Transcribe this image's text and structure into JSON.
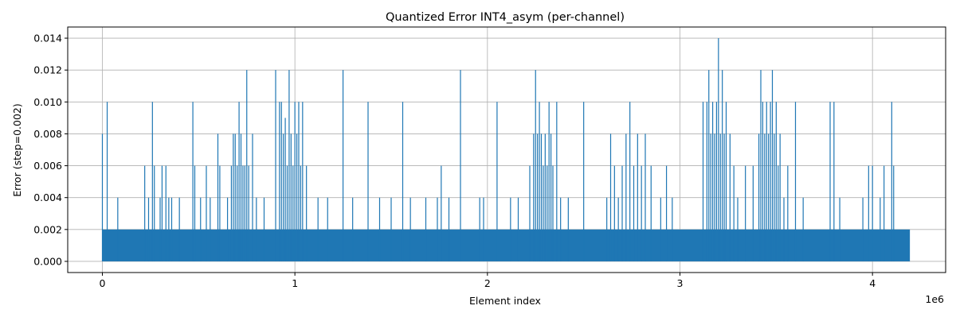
{
  "chart_data": {
    "type": "line",
    "title": "Quantized Error INT4_asym (per-channel)",
    "xlabel": "Element index",
    "ylabel": "Error (step=0.002)",
    "x_offset_text": "1e6",
    "xlim": [
      -180000,
      4380000
    ],
    "ylim": [
      -0.0007,
      0.0147
    ],
    "grid": true,
    "series_color": "#1f77b4",
    "x_ticks": [
      {
        "value": 0,
        "label": "0"
      },
      {
        "value": 1000000,
        "label": "1"
      },
      {
        "value": 2000000,
        "label": "2"
      },
      {
        "value": 3000000,
        "label": "3"
      },
      {
        "value": 4000000,
        "label": "4"
      }
    ],
    "y_ticks": [
      {
        "value": 0.0,
        "label": "0.000"
      },
      {
        "value": 0.002,
        "label": "0.002"
      },
      {
        "value": 0.004,
        "label": "0.004"
      },
      {
        "value": 0.006,
        "label": "0.006"
      },
      {
        "value": 0.008,
        "label": "0.008"
      },
      {
        "value": 0.01,
        "label": "0.010"
      },
      {
        "value": 0.012,
        "label": "0.012"
      },
      {
        "value": 0.014,
        "label": "0.014"
      }
    ],
    "series": [
      {
        "x_range": [
          0,
          4194304
        ],
        "baseline_band": [
          0.0,
          0.002
        ],
        "spikes": [
          [
            0,
            0.008
          ],
          [
            25000,
            0.01
          ],
          [
            80000,
            0.004
          ],
          [
            220000,
            0.006
          ],
          [
            240000,
            0.004
          ],
          [
            260000,
            0.01
          ],
          [
            270000,
            0.006
          ],
          [
            300000,
            0.004
          ],
          [
            310000,
            0.006
          ],
          [
            330000,
            0.006
          ],
          [
            345000,
            0.004
          ],
          [
            360000,
            0.004
          ],
          [
            400000,
            0.004
          ],
          [
            470000,
            0.01
          ],
          [
            480000,
            0.006
          ],
          [
            510000,
            0.004
          ],
          [
            540000,
            0.006
          ],
          [
            560000,
            0.004
          ],
          [
            600000,
            0.008
          ],
          [
            610000,
            0.006
          ],
          [
            650000,
            0.004
          ],
          [
            670000,
            0.006
          ],
          [
            680000,
            0.008
          ],
          [
            690000,
            0.008
          ],
          [
            700000,
            0.006
          ],
          [
            710000,
            0.01
          ],
          [
            720000,
            0.008
          ],
          [
            730000,
            0.006
          ],
          [
            740000,
            0.006
          ],
          [
            750000,
            0.012
          ],
          [
            760000,
            0.006
          ],
          [
            780000,
            0.008
          ],
          [
            800000,
            0.004
          ],
          [
            840000,
            0.004
          ],
          [
            900000,
            0.012
          ],
          [
            920000,
            0.01
          ],
          [
            930000,
            0.01
          ],
          [
            940000,
            0.008
          ],
          [
            950000,
            0.009
          ],
          [
            960000,
            0.006
          ],
          [
            970000,
            0.012
          ],
          [
            980000,
            0.008
          ],
          [
            990000,
            0.006
          ],
          [
            1000000,
            0.01
          ],
          [
            1010000,
            0.008
          ],
          [
            1020000,
            0.01
          ],
          [
            1030000,
            0.006
          ],
          [
            1040000,
            0.01
          ],
          [
            1060000,
            0.006
          ],
          [
            1120000,
            0.004
          ],
          [
            1170000,
            0.004
          ],
          [
            1250000,
            0.012
          ],
          [
            1300000,
            0.004
          ],
          [
            1380000,
            0.01
          ],
          [
            1440000,
            0.004
          ],
          [
            1500000,
            0.004
          ],
          [
            1560000,
            0.01
          ],
          [
            1600000,
            0.004
          ],
          [
            1680000,
            0.004
          ],
          [
            1740000,
            0.004
          ],
          [
            1760000,
            0.006
          ],
          [
            1800000,
            0.004
          ],
          [
            1860000,
            0.012
          ],
          [
            1960000,
            0.004
          ],
          [
            1980000,
            0.004
          ],
          [
            2050000,
            0.01
          ],
          [
            2120000,
            0.004
          ],
          [
            2160000,
            0.004
          ],
          [
            2220000,
            0.006
          ],
          [
            2240000,
            0.008
          ],
          [
            2250000,
            0.012
          ],
          [
            2260000,
            0.008
          ],
          [
            2270000,
            0.01
          ],
          [
            2280000,
            0.008
          ],
          [
            2290000,
            0.006
          ],
          [
            2300000,
            0.008
          ],
          [
            2310000,
            0.006
          ],
          [
            2320000,
            0.01
          ],
          [
            2330000,
            0.008
          ],
          [
            2340000,
            0.006
          ],
          [
            2360000,
            0.01
          ],
          [
            2380000,
            0.004
          ],
          [
            2420000,
            0.004
          ],
          [
            2500000,
            0.01
          ],
          [
            2620000,
            0.004
          ],
          [
            2640000,
            0.008
          ],
          [
            2660000,
            0.006
          ],
          [
            2680000,
            0.004
          ],
          [
            2700000,
            0.006
          ],
          [
            2720000,
            0.008
          ],
          [
            2740000,
            0.01
          ],
          [
            2760000,
            0.006
          ],
          [
            2780000,
            0.008
          ],
          [
            2800000,
            0.006
          ],
          [
            2820000,
            0.008
          ],
          [
            2850000,
            0.006
          ],
          [
            2900000,
            0.004
          ],
          [
            2930000,
            0.006
          ],
          [
            2960000,
            0.004
          ],
          [
            3120000,
            0.01
          ],
          [
            3140000,
            0.01
          ],
          [
            3150000,
            0.012
          ],
          [
            3160000,
            0.008
          ],
          [
            3170000,
            0.01
          ],
          [
            3180000,
            0.008
          ],
          [
            3190000,
            0.01
          ],
          [
            3200000,
            0.014
          ],
          [
            3210000,
            0.008
          ],
          [
            3220000,
            0.012
          ],
          [
            3230000,
            0.008
          ],
          [
            3240000,
            0.01
          ],
          [
            3260000,
            0.008
          ],
          [
            3280000,
            0.006
          ],
          [
            3300000,
            0.004
          ],
          [
            3340000,
            0.006
          ],
          [
            3380000,
            0.006
          ],
          [
            3410000,
            0.008
          ],
          [
            3420000,
            0.012
          ],
          [
            3430000,
            0.01
          ],
          [
            3440000,
            0.008
          ],
          [
            3450000,
            0.01
          ],
          [
            3460000,
            0.008
          ],
          [
            3470000,
            0.01
          ],
          [
            3480000,
            0.012
          ],
          [
            3490000,
            0.008
          ],
          [
            3500000,
            0.01
          ],
          [
            3510000,
            0.006
          ],
          [
            3520000,
            0.008
          ],
          [
            3540000,
            0.004
          ],
          [
            3560000,
            0.006
          ],
          [
            3600000,
            0.01
          ],
          [
            3640000,
            0.004
          ],
          [
            3780000,
            0.01
          ],
          [
            3800000,
            0.01
          ],
          [
            3830000,
            0.004
          ],
          [
            3950000,
            0.004
          ],
          [
            3980000,
            0.006
          ],
          [
            4000000,
            0.006
          ],
          [
            4040000,
            0.004
          ],
          [
            4060000,
            0.006
          ],
          [
            4100000,
            0.01
          ],
          [
            4110000,
            0.006
          ]
        ]
      }
    ]
  }
}
